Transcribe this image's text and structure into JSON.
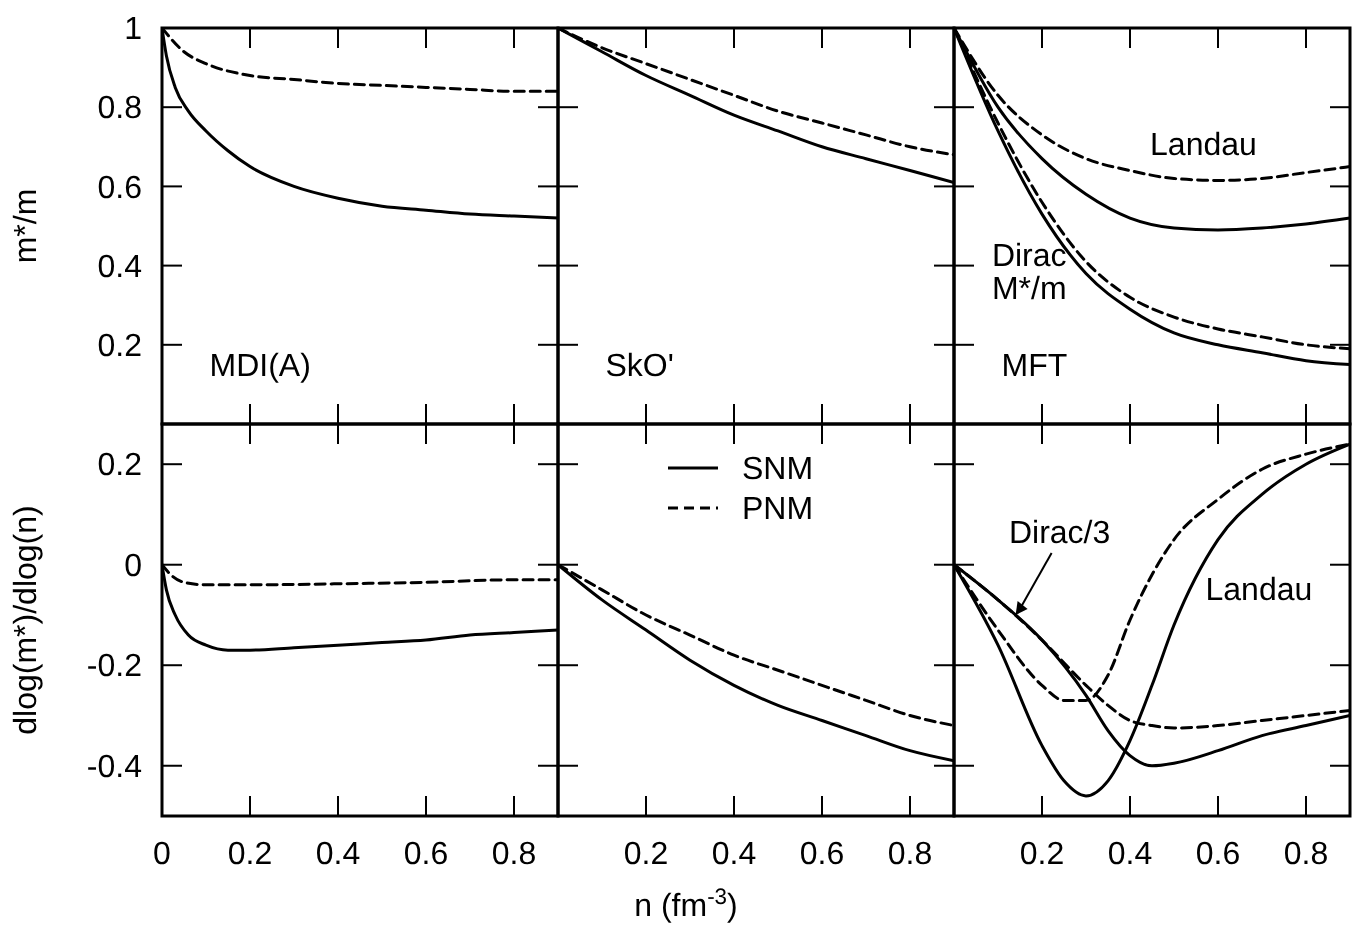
{
  "chart_data": [
    {
      "type": "line",
      "ylabel": "m*/m",
      "xlim": [
        0,
        0.9
      ],
      "ylim": [
        0,
        1
      ],
      "xticks": [
        0,
        0.2,
        0.4,
        0.6,
        0.8
      ],
      "yticks": [
        0.2,
        0.4,
        0.6,
        0.8,
        1
      ],
      "tick_labels": "y",
      "annotations": [
        "MDI(A)"
      ],
      "series": [
        {
          "color": "#000000",
          "line_style": "solid",
          "x": [
            0,
            0.01,
            0.03,
            0.06,
            0.1,
            0.15,
            0.2,
            0.3,
            0.4,
            0.5,
            0.6,
            0.7,
            0.8,
            0.9
          ],
          "values": [
            1,
            0.93,
            0.85,
            0.79,
            0.74,
            0.69,
            0.65,
            0.6,
            0.57,
            0.55,
            0.54,
            0.53,
            0.525,
            0.52
          ]
        },
        {
          "color": "#000000",
          "line_style": "dashed",
          "x": [
            0,
            0.05,
            0.1,
            0.2,
            0.3,
            0.4,
            0.5,
            0.6,
            0.7,
            0.8,
            0.9
          ],
          "values": [
            1,
            0.94,
            0.91,
            0.88,
            0.87,
            0.86,
            0.855,
            0.85,
            0.845,
            0.84,
            0.84
          ]
        }
      ]
    },
    {
      "type": "line",
      "xlim": [
        0,
        0.9
      ],
      "ylim": [
        0,
        1
      ],
      "xticks": [
        0,
        0.2,
        0.4,
        0.6,
        0.8
      ],
      "yticks": [
        0.2,
        0.4,
        0.6,
        0.8,
        1
      ],
      "tick_labels": false,
      "annotations": [
        "SkO'"
      ],
      "series": [
        {
          "color": "#000000",
          "line_style": "solid",
          "x": [
            0,
            0.1,
            0.2,
            0.3,
            0.4,
            0.5,
            0.6,
            0.7,
            0.8,
            0.9
          ],
          "values": [
            1,
            0.94,
            0.88,
            0.83,
            0.78,
            0.74,
            0.7,
            0.67,
            0.64,
            0.61
          ]
        },
        {
          "color": "#000000",
          "line_style": "dashed",
          "x": [
            0,
            0.1,
            0.2,
            0.3,
            0.4,
            0.5,
            0.6,
            0.7,
            0.8,
            0.9
          ],
          "values": [
            1,
            0.95,
            0.91,
            0.87,
            0.83,
            0.79,
            0.76,
            0.73,
            0.7,
            0.68
          ]
        }
      ]
    },
    {
      "type": "line",
      "xlim": [
        0,
        0.9
      ],
      "ylim": [
        0,
        1
      ],
      "xticks": [
        0,
        0.2,
        0.4,
        0.6,
        0.8
      ],
      "yticks": [
        0.2,
        0.4,
        0.6,
        0.8,
        1
      ],
      "tick_labels": false,
      "annotations": [
        "MFT",
        "Landau",
        "Dirac\nM*/m"
      ],
      "series": [
        {
          "color": "#000000",
          "line_style": "dashed",
          "x": [
            0,
            0.1,
            0.2,
            0.3,
            0.4,
            0.5,
            0.6,
            0.7,
            0.8,
            0.9
          ],
          "values": [
            1,
            0.83,
            0.73,
            0.67,
            0.64,
            0.62,
            0.615,
            0.62,
            0.635,
            0.65
          ]
        },
        {
          "color": "#000000",
          "line_style": "solid",
          "x": [
            0,
            0.1,
            0.2,
            0.3,
            0.4,
            0.5,
            0.6,
            0.7,
            0.8,
            0.9
          ],
          "values": [
            1,
            0.8,
            0.67,
            0.58,
            0.52,
            0.495,
            0.49,
            0.495,
            0.505,
            0.52
          ]
        },
        {
          "color": "#000000",
          "line_style": "dashed",
          "x": [
            0,
            0.1,
            0.2,
            0.3,
            0.4,
            0.5,
            0.6,
            0.7,
            0.8,
            0.9
          ],
          "values": [
            1,
            0.76,
            0.56,
            0.41,
            0.32,
            0.27,
            0.24,
            0.22,
            0.2,
            0.19
          ]
        },
        {
          "color": "#000000",
          "line_style": "solid",
          "x": [
            0,
            0.1,
            0.2,
            0.3,
            0.4,
            0.5,
            0.6,
            0.7,
            0.8,
            0.9
          ],
          "values": [
            1,
            0.74,
            0.53,
            0.38,
            0.29,
            0.23,
            0.2,
            0.18,
            0.16,
            0.15
          ]
        }
      ]
    },
    {
      "type": "line",
      "ylabel": "dlog(m*)/dlog(n)",
      "xlim": [
        0,
        0.9
      ],
      "ylim": [
        -0.5,
        0.28
      ],
      "xticks": [
        0,
        0.2,
        0.4,
        0.6,
        0.8
      ],
      "yticks": [
        -0.4,
        -0.2,
        0,
        0.2
      ],
      "series": [
        {
          "color": "#000000",
          "line_style": "solid",
          "x": [
            0,
            0.01,
            0.03,
            0.06,
            0.1,
            0.15,
            0.2,
            0.3,
            0.4,
            0.5,
            0.6,
            0.7,
            0.8,
            0.9
          ],
          "values": [
            0,
            -0.05,
            -0.1,
            -0.14,
            -0.16,
            -0.17,
            -0.17,
            -0.165,
            -0.16,
            -0.155,
            -0.15,
            -0.14,
            -0.135,
            -0.13
          ]
        },
        {
          "color": "#000000",
          "line_style": "dashed",
          "x": [
            0,
            0.02,
            0.05,
            0.1,
            0.2,
            0.4,
            0.6,
            0.8,
            0.9
          ],
          "values": [
            0,
            -0.02,
            -0.035,
            -0.04,
            -0.04,
            -0.038,
            -0.035,
            -0.03,
            -0.03
          ]
        }
      ]
    },
    {
      "type": "line",
      "xlabel": "n (fm$^{-3}$)",
      "xlim": [
        0,
        0.9
      ],
      "ylim": [
        -0.5,
        0.28
      ],
      "xticks": [
        {
          "value": 0,
          "label": null
        },
        0.2,
        0.4,
        0.6,
        0.8
      ],
      "yticks": [
        -0.4,
        -0.2,
        0,
        0.2
      ],
      "tick_labels": "x",
      "legend": "top",
      "series": [
        {
          "name": "SNM",
          "color": "#000000",
          "line_style": "solid",
          "x": [
            0,
            0.1,
            0.2,
            0.3,
            0.4,
            0.5,
            0.6,
            0.7,
            0.8,
            0.9
          ],
          "values": [
            0,
            -0.07,
            -0.13,
            -0.19,
            -0.24,
            -0.28,
            -0.31,
            -0.34,
            -0.37,
            -0.39
          ]
        },
        {
          "name": "PNM",
          "color": "#000000",
          "line_style": "dashed",
          "x": [
            0,
            0.1,
            0.2,
            0.3,
            0.4,
            0.5,
            0.6,
            0.7,
            0.8,
            0.9
          ],
          "values": [
            0,
            -0.05,
            -0.1,
            -0.14,
            -0.18,
            -0.21,
            -0.24,
            -0.27,
            -0.3,
            -0.32
          ]
        }
      ]
    },
    {
      "type": "line",
      "xlim": [
        0,
        0.9
      ],
      "ylim": [
        -0.5,
        0.28
      ],
      "xticks": [
        {
          "value": 0,
          "label": null
        },
        0.2,
        0.4,
        0.6,
        0.8
      ],
      "yticks": [
        -0.4,
        -0.2,
        0,
        0.2
      ],
      "tick_labels": "x",
      "annotations": [
        {
          "text": "Dirac/3",
          "x": 0.14,
          "y": -0.1
        },
        "Landau"
      ],
      "series": [
        {
          "color": "#000000",
          "line_style": "solid",
          "x": [
            0,
            0.1,
            0.2,
            0.3,
            0.35,
            0.4,
            0.45,
            0.5,
            0.6,
            0.7,
            0.8,
            0.9
          ],
          "values": [
            0,
            -0.07,
            -0.15,
            -0.26,
            -0.33,
            -0.38,
            -0.4,
            -0.395,
            -0.37,
            -0.34,
            -0.32,
            -0.3
          ]
        },
        {
          "color": "#000000",
          "line_style": "dashed",
          "x": [
            0,
            0.1,
            0.2,
            0.3,
            0.35,
            0.4,
            0.45,
            0.5,
            0.6,
            0.7,
            0.8,
            0.9
          ],
          "values": [
            0,
            -0.07,
            -0.15,
            -0.24,
            -0.28,
            -0.31,
            -0.32,
            -0.325,
            -0.32,
            -0.31,
            -0.3,
            -0.29
          ]
        },
        {
          "color": "#000000",
          "line_style": "solid",
          "x": [
            0,
            0.1,
            0.2,
            0.25,
            0.3,
            0.35,
            0.4,
            0.45,
            0.5,
            0.6,
            0.7,
            0.8,
            0.9
          ],
          "values": [
            0,
            -0.16,
            -0.36,
            -0.43,
            -0.46,
            -0.43,
            -0.35,
            -0.24,
            -0.12,
            0.05,
            0.14,
            0.2,
            0.24
          ]
        },
        {
          "color": "#000000",
          "line_style": "dashed",
          "x": [
            0,
            0.1,
            0.2,
            0.25,
            0.3,
            0.35,
            0.4,
            0.45,
            0.5,
            0.6,
            0.7,
            0.8,
            0.9
          ],
          "values": [
            0,
            -0.13,
            -0.24,
            -0.27,
            -0.27,
            -0.22,
            -0.11,
            -0.02,
            0.05,
            0.13,
            0.19,
            0.22,
            0.24
          ]
        }
      ]
    }
  ]
}
